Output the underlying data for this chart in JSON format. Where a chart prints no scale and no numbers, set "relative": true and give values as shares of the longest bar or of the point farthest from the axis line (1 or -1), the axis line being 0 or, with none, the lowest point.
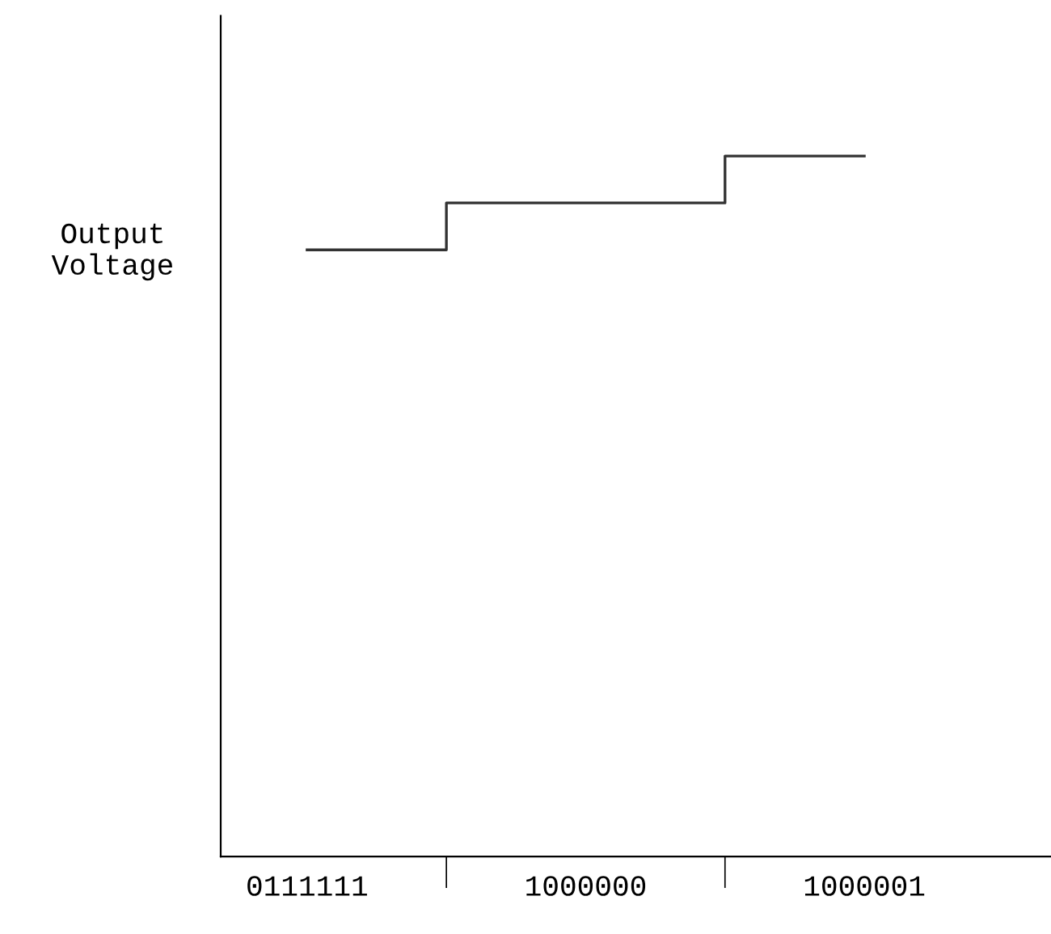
{
  "chart_data": {
    "type": "step",
    "relative": true,
    "ylabel": "Output\nVoltage",
    "categories": [
      "0111111",
      "1000000",
      "1000001"
    ],
    "values": [
      0.866,
      0.933,
      1
    ],
    "color": "#333333",
    "grid": false,
    "legend": false
  }
}
